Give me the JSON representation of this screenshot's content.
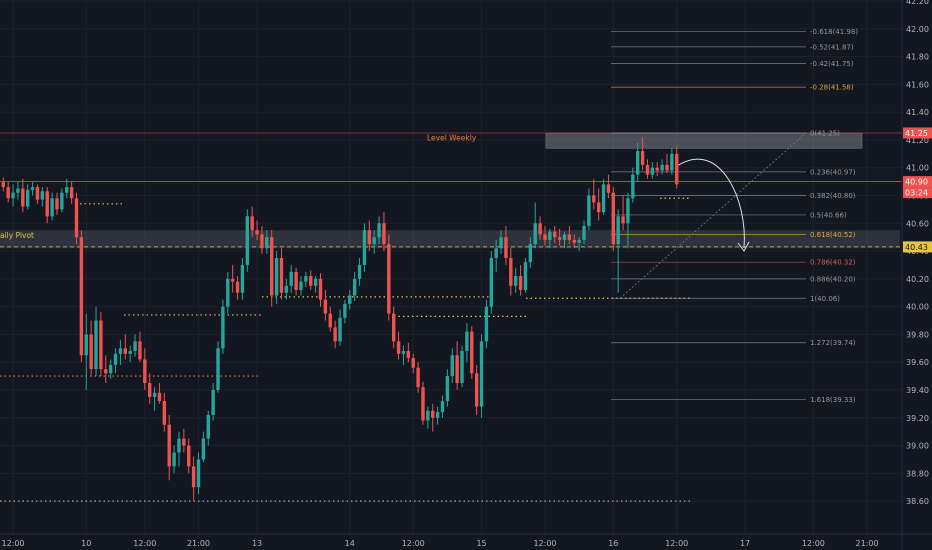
{
  "theme": {
    "bg": "#131722",
    "up": "#26a69a",
    "down": "#ef5350",
    "grid": "#1e222d",
    "axis_text": "#b2b5be"
  },
  "chart_data": {
    "type": "candlestick",
    "ylim": [
      38.5,
      42.2
    ],
    "y_ticks": [
      "38.60",
      "38.80",
      "39.00",
      "39.20",
      "39.40",
      "39.60",
      "39.80",
      "40.00",
      "40.20",
      "40.40",
      "40.60",
      "40.80",
      "41.00",
      "41.20",
      "41.40",
      "41.60",
      "41.80",
      "42.00",
      "42.20"
    ],
    "x_ticks": [
      {
        "label": "12:00",
        "i": 2
      },
      {
        "label": "10",
        "i": 17
      },
      {
        "label": "12:00",
        "i": 29
      },
      {
        "label": "21:00",
        "i": 40
      },
      {
        "label": "13",
        "i": 52
      },
      {
        "label": "14",
        "i": 71
      },
      {
        "label": "12:00",
        "i": 84
      },
      {
        "label": "15",
        "i": 98
      },
      {
        "label": "12:00",
        "i": 111
      },
      {
        "label": "16",
        "i": 125
      },
      {
        "label": "12:00",
        "i": 138
      },
      {
        "label": "17",
        "i": 152
      },
      {
        "label": "12:00",
        "i": 166
      },
      {
        "label": "21:00",
        "i": 177
      }
    ],
    "candles": [
      [
        40.9,
        40.93,
        40.83,
        40.86
      ],
      [
        40.86,
        40.9,
        40.75,
        40.78
      ],
      [
        40.78,
        40.88,
        40.72,
        40.82
      ],
      [
        40.82,
        40.9,
        40.77,
        40.85
      ],
      [
        40.85,
        40.92,
        40.68,
        40.72
      ],
      [
        40.72,
        40.88,
        40.7,
        40.84
      ],
      [
        40.84,
        40.9,
        40.8,
        40.86
      ],
      [
        40.86,
        40.88,
        40.74,
        40.77
      ],
      [
        40.77,
        40.86,
        40.72,
        40.83
      ],
      [
        40.83,
        40.86,
        40.6,
        40.65
      ],
      [
        40.65,
        40.82,
        40.62,
        40.78
      ],
      [
        40.78,
        40.82,
        40.66,
        40.7
      ],
      [
        40.7,
        40.85,
        40.68,
        40.82
      ],
      [
        40.82,
        40.92,
        40.78,
        40.86
      ],
      [
        40.86,
        40.9,
        40.74,
        40.78
      ],
      [
        40.78,
        40.82,
        40.45,
        40.5
      ],
      [
        40.5,
        40.55,
        39.6,
        39.65
      ],
      [
        39.65,
        39.95,
        39.4,
        39.8
      ],
      [
        39.8,
        39.9,
        39.5,
        39.55
      ],
      [
        39.55,
        40.0,
        39.5,
        39.9
      ],
      [
        39.9,
        39.96,
        39.5,
        39.55
      ],
      [
        39.55,
        39.65,
        39.45,
        39.52
      ],
      [
        39.52,
        39.62,
        39.48,
        39.58
      ],
      [
        39.58,
        39.7,
        39.52,
        39.66
      ],
      [
        39.66,
        39.76,
        39.58,
        39.7
      ],
      [
        39.7,
        39.8,
        39.62,
        39.66
      ],
      [
        39.66,
        39.72,
        39.6,
        39.68
      ],
      [
        39.68,
        39.8,
        39.64,
        39.75
      ],
      [
        39.75,
        39.82,
        39.6,
        39.62
      ],
      [
        39.62,
        39.7,
        39.4,
        39.45
      ],
      [
        39.45,
        39.52,
        39.3,
        39.35
      ],
      [
        39.35,
        39.42,
        39.25,
        39.38
      ],
      [
        39.38,
        39.45,
        39.3,
        39.32
      ],
      [
        39.32,
        39.38,
        39.1,
        39.15
      ],
      [
        39.15,
        39.22,
        38.75,
        38.85
      ],
      [
        38.85,
        39.0,
        38.8,
        38.95
      ],
      [
        38.95,
        39.1,
        38.85,
        39.05
      ],
      [
        39.05,
        39.12,
        38.95,
        39.0
      ],
      [
        39.0,
        39.05,
        38.8,
        38.85
      ],
      [
        38.85,
        38.92,
        38.6,
        38.7
      ],
      [
        38.7,
        38.95,
        38.65,
        38.9
      ],
      [
        38.9,
        39.1,
        38.88,
        39.05
      ],
      [
        39.05,
        39.25,
        39.0,
        39.22
      ],
      [
        39.22,
        39.45,
        39.18,
        39.4
      ],
      [
        39.4,
        39.75,
        39.38,
        39.7
      ],
      [
        39.7,
        40.05,
        39.66,
        40.0
      ],
      [
        40.0,
        40.25,
        39.95,
        40.2
      ],
      [
        40.2,
        40.3,
        40.1,
        40.18
      ],
      [
        40.18,
        40.22,
        40.05,
        40.1
      ],
      [
        40.1,
        40.35,
        40.05,
        40.3
      ],
      [
        40.3,
        40.7,
        40.25,
        40.65
      ],
      [
        40.65,
        40.72,
        40.5,
        40.55
      ],
      [
        40.55,
        40.62,
        40.48,
        40.52
      ],
      [
        40.52,
        40.58,
        40.38,
        40.42
      ],
      [
        40.42,
        40.55,
        40.38,
        40.5
      ],
      [
        40.5,
        40.55,
        40.0,
        40.08
      ],
      [
        40.08,
        40.4,
        40.02,
        40.35
      ],
      [
        40.35,
        40.42,
        40.05,
        40.1
      ],
      [
        40.1,
        40.2,
        40.05,
        40.15
      ],
      [
        40.15,
        40.3,
        40.1,
        40.25
      ],
      [
        40.25,
        40.28,
        40.08,
        40.12
      ],
      [
        40.12,
        40.22,
        40.08,
        40.18
      ],
      [
        40.18,
        40.25,
        40.14,
        40.22
      ],
      [
        40.22,
        40.26,
        40.12,
        40.15
      ],
      [
        40.15,
        40.22,
        40.1,
        40.2
      ],
      [
        40.2,
        40.24,
        40.0,
        40.05
      ],
      [
        40.05,
        40.12,
        39.9,
        39.95
      ],
      [
        39.95,
        40.0,
        39.82,
        39.85
      ],
      [
        39.85,
        39.9,
        39.7,
        39.75
      ],
      [
        39.75,
        39.98,
        39.72,
        39.92
      ],
      [
        39.92,
        40.05,
        39.88,
        40.02
      ],
      [
        40.02,
        40.12,
        39.98,
        40.08
      ],
      [
        40.08,
        40.25,
        40.04,
        40.2
      ],
      [
        40.2,
        40.35,
        40.15,
        40.3
      ],
      [
        40.3,
        40.6,
        40.25,
        40.55
      ],
      [
        40.55,
        40.62,
        40.4,
        40.45
      ],
      [
        40.45,
        40.55,
        40.38,
        40.5
      ],
      [
        40.5,
        40.65,
        40.45,
        40.6
      ],
      [
        40.6,
        40.68,
        40.4,
        40.45
      ],
      [
        40.45,
        40.52,
        39.9,
        39.95
      ],
      [
        39.95,
        40.0,
        39.7,
        39.75
      ],
      [
        39.75,
        39.82,
        39.62,
        39.66
      ],
      [
        39.66,
        39.72,
        39.58,
        39.68
      ],
      [
        39.68,
        39.74,
        39.6,
        39.63
      ],
      [
        39.63,
        39.66,
        39.52,
        39.56
      ],
      [
        39.56,
        39.6,
        39.38,
        39.42
      ],
      [
        39.42,
        39.46,
        39.15,
        39.18
      ],
      [
        39.18,
        39.28,
        39.12,
        39.25
      ],
      [
        39.25,
        39.3,
        39.1,
        39.2
      ],
      [
        39.2,
        39.28,
        39.15,
        39.24
      ],
      [
        39.24,
        39.36,
        39.2,
        39.32
      ],
      [
        39.32,
        39.55,
        39.28,
        39.5
      ],
      [
        39.5,
        39.7,
        39.45,
        39.65
      ],
      [
        39.65,
        39.75,
        39.4,
        39.45
      ],
      [
        39.45,
        39.72,
        39.42,
        39.68
      ],
      [
        39.68,
        39.88,
        39.6,
        39.82
      ],
      [
        39.82,
        39.86,
        39.48,
        39.52
      ],
      [
        39.52,
        39.58,
        39.22,
        39.28
      ],
      [
        39.28,
        39.8,
        39.2,
        39.75
      ],
      [
        39.75,
        40.05,
        39.7,
        40.0
      ],
      [
        40.0,
        40.4,
        39.95,
        40.35
      ],
      [
        40.35,
        40.48,
        40.25,
        40.42
      ],
      [
        40.42,
        40.55,
        40.38,
        40.5
      ],
      [
        40.5,
        40.58,
        40.3,
        40.35
      ],
      [
        40.35,
        40.42,
        40.08,
        40.15
      ],
      [
        40.15,
        40.28,
        40.1,
        40.22
      ],
      [
        40.22,
        40.3,
        40.08,
        40.12
      ],
      [
        40.12,
        40.35,
        40.1,
        40.32
      ],
      [
        40.32,
        40.5,
        40.28,
        40.45
      ],
      [
        40.45,
        40.75,
        40.42,
        40.6
      ],
      [
        40.6,
        40.65,
        40.48,
        40.52
      ],
      [
        40.52,
        40.58,
        40.44,
        40.48
      ],
      [
        40.48,
        40.56,
        40.42,
        40.54
      ],
      [
        40.54,
        40.58,
        40.46,
        40.5
      ],
      [
        40.5,
        40.56,
        40.44,
        40.48
      ],
      [
        40.48,
        40.54,
        40.42,
        40.52
      ],
      [
        40.52,
        40.58,
        40.45,
        40.48
      ],
      [
        40.48,
        40.52,
        40.42,
        40.46
      ],
      [
        40.46,
        40.5,
        40.4,
        40.48
      ],
      [
        40.48,
        40.62,
        40.45,
        40.58
      ],
      [
        40.58,
        40.85,
        40.55,
        40.8
      ],
      [
        40.8,
        40.92,
        40.7,
        40.75
      ],
      [
        40.75,
        40.85,
        40.62,
        40.68
      ],
      [
        40.68,
        40.92,
        40.66,
        40.88
      ],
      [
        40.88,
        40.95,
        40.78,
        40.82
      ],
      [
        40.82,
        40.86,
        40.4,
        40.45
      ],
      [
        40.45,
        40.7,
        40.1,
        40.65
      ],
      [
        40.65,
        40.8,
        40.55,
        40.6
      ],
      [
        40.6,
        40.82,
        40.42,
        40.78
      ],
      [
        40.78,
        41.0,
        40.75,
        40.95
      ],
      [
        40.95,
        41.18,
        40.9,
        41.12
      ],
      [
        41.12,
        41.22,
        40.98,
        41.02
      ],
      [
        41.02,
        41.06,
        40.92,
        40.95
      ],
      [
        40.95,
        41.04,
        40.92,
        41.0
      ],
      [
        41.0,
        41.04,
        40.94,
        40.98
      ],
      [
        40.98,
        41.06,
        40.95,
        41.02
      ],
      [
        41.02,
        41.1,
        40.96,
        40.98
      ],
      [
        40.98,
        41.14,
        40.95,
        41.1
      ],
      [
        41.1,
        41.16,
        40.85,
        40.88
      ]
    ],
    "fib_levels": [
      {
        "ratio": -0.618,
        "price": 41.98,
        "label": "-0.618(41.98)",
        "color": "#9598a1"
      },
      {
        "ratio": -0.52,
        "price": 41.87,
        "label": "-0.52(41.87)",
        "color": "#9598a1"
      },
      {
        "ratio": -0.42,
        "price": 41.75,
        "label": "-0.42(41.75)",
        "color": "#9598a1"
      },
      {
        "ratio": -0.28,
        "price": 41.58,
        "label": "-0.28(41.58)",
        "color": "#e0a53c"
      },
      {
        "ratio": 0,
        "price": 41.25,
        "label": "0(41.25)",
        "color": "#9598a1"
      },
      {
        "ratio": 0.236,
        "price": 40.97,
        "label": "0.236(40.97)",
        "color": "#9598a1"
      },
      {
        "ratio": 0.382,
        "price": 40.8,
        "label": "0.382(40.80)",
        "color": "#9598a1"
      },
      {
        "ratio": 0.5,
        "price": 40.66,
        "label": "0.5(40.66)",
        "color": "#9598a1"
      },
      {
        "ratio": 0.618,
        "price": 40.52,
        "label": "0.618(40.52)",
        "color": "#e0a53c"
      },
      {
        "ratio": 0.786,
        "price": 40.32,
        "label": "0.786(40.32)",
        "color": "#d0604a"
      },
      {
        "ratio": 0.886,
        "price": 40.2,
        "label": "0.886(40.20)",
        "color": "#9598a1"
      },
      {
        "ratio": 1,
        "price": 40.06,
        "label": "1(40.06)",
        "color": "#9598a1"
      },
      {
        "ratio": 1.272,
        "price": 39.74,
        "label": "1.272(39.74)",
        "color": "#9598a1"
      },
      {
        "ratio": 1.618,
        "price": 39.33,
        "label": "1.618(39.33)",
        "color": "#9598a1"
      }
    ],
    "annotations": {
      "level_weekly": {
        "text": "Level Weekly",
        "price": 41.25,
        "color": "#e8803c"
      },
      "daily_pivot": {
        "text": "aily Pivot",
        "price": 40.43,
        "color": "#e8c53c"
      }
    },
    "price_tags": [
      {
        "price": 41.25,
        "text": "41.25",
        "bg": "#ef5350",
        "fg": "#ffffff"
      },
      {
        "price": 40.9,
        "text": "40.90",
        "bg": "#ef5350",
        "fg": "#ffffff"
      },
      {
        "price": 40.8,
        "text": "03:24",
        "bg": "#ef5350",
        "fg": "#ffffff"
      },
      {
        "price": 40.43,
        "text": "40.43",
        "bg": "#e8c53c",
        "fg": "#131722"
      }
    ],
    "current_price": 40.9
  }
}
